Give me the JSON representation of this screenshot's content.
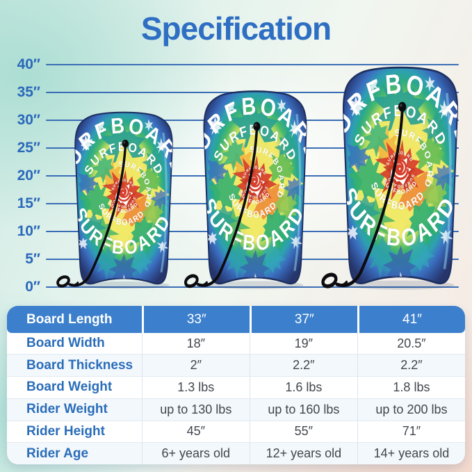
{
  "title": "Specification",
  "ruler": {
    "marks": [
      "40″",
      "35″",
      "30″",
      "25″",
      "20″",
      "15″",
      "10″",
      "5″",
      "0″"
    ]
  },
  "board_art": {
    "brand": "SURFBOARD"
  },
  "table": {
    "header": {
      "label": "Board Length",
      "values": [
        "33″",
        "37″",
        "41″"
      ]
    },
    "rows": [
      {
        "label": "Board Width",
        "values": [
          "18″",
          "19″",
          "20.5″"
        ]
      },
      {
        "label": "Board Thickness",
        "values": [
          "2″",
          "2.2″",
          "2.2″"
        ]
      },
      {
        "label": "Board Weight",
        "values": [
          "1.3 lbs",
          "1.6 lbs",
          "1.8 lbs"
        ]
      },
      {
        "label": "Rider Weight",
        "values": [
          "up to 130 lbs",
          "up to 160 lbs",
          "up to 200 lbs"
        ]
      },
      {
        "label": "Rider Height",
        "values": [
          "45″",
          "55″",
          "71″"
        ]
      },
      {
        "label": "Rider Age",
        "values": [
          "6+ years old",
          "12+ years old",
          "14+ years old"
        ]
      }
    ]
  },
  "colors": {
    "accent_blue": "#2e6ec3",
    "table_header_bg": "#3c80cd",
    "ruler_line": "#3a6db6",
    "label_blue": "#2a6db9"
  }
}
